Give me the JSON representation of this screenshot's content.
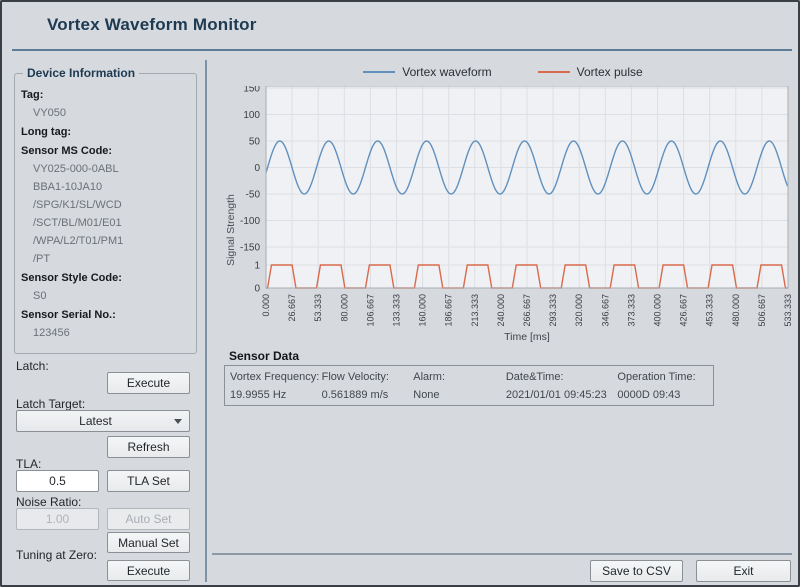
{
  "window": {
    "title": "Vortex Waveform Monitor"
  },
  "device_info": {
    "title": "Device Information",
    "fields": [
      {
        "label": "Tag:",
        "values": [
          "VY050"
        ]
      },
      {
        "label": "Long tag:",
        "values": []
      },
      {
        "label": "Sensor MS Code:",
        "values": [
          "VY025-000-0ABL",
          "BBA1-10JA10",
          "/SPG/K1/SL/WCD",
          "/SCT/BL/M01/E01",
          "/WPA/L2/T01/PM1",
          "/PT"
        ]
      },
      {
        "label": "Sensor Style Code:",
        "values": [
          "S0"
        ]
      },
      {
        "label": "Sensor Serial No.:",
        "values": [
          "123456"
        ]
      }
    ]
  },
  "controls": {
    "latch_label": "Latch:",
    "latch_execute": "Execute",
    "latch_target_label": "Latch Target:",
    "latch_target_value": "Latest",
    "refresh": "Refresh",
    "tla_label": "TLA:",
    "tla_value": "0.5",
    "tla_set": "TLA Set",
    "noise_ratio_label": "Noise Ratio:",
    "noise_ratio_value": "1.00",
    "auto_set": "Auto Set",
    "manual_set": "Manual Set",
    "tuning_label": "Tuning at Zero:",
    "tuning_execute": "Execute"
  },
  "chart_data": {
    "type": "line",
    "xlabel": "Time [ms]",
    "ylabel": "Signal Strength",
    "x_range": [
      0,
      533.333
    ],
    "x_ticks": [
      "0.000",
      "26.667",
      "53.333",
      "80.000",
      "106.667",
      "133.333",
      "160.000",
      "186.667",
      "213.333",
      "240.000",
      "266.667",
      "293.333",
      "320.000",
      "346.667",
      "373.333",
      "400.000",
      "426.667",
      "453.333",
      "480.000",
      "506.667",
      "533.333"
    ],
    "waveform_axis": {
      "ticks": [
        150,
        100,
        50,
        0,
        -50,
        -100,
        -150
      ],
      "range": [
        -150,
        150
      ]
    },
    "pulse_axis": {
      "ticks": [
        1,
        0
      ],
      "range": [
        0,
        1
      ]
    },
    "grid": true,
    "legend_position": "top",
    "series": [
      {
        "name": "Vortex waveform",
        "kind": "sine",
        "color": "#6090bd",
        "amplitude": 50,
        "frequency_hz": 19.9955,
        "phase_rad": -0.2
      },
      {
        "name": "Vortex pulse",
        "kind": "pulse",
        "color": "#d96a4c",
        "high": 1,
        "low": 0,
        "frequency_hz": 19.9955,
        "onset_ms": 1.6,
        "rise_ms": 4,
        "duty": 0.5
      }
    ],
    "colors": {
      "plot_bg": "#f0f1f4",
      "grid": "#dcdfe4",
      "plot_border": "#a9aeb4",
      "tick_text": "#3c4146"
    }
  },
  "sensor_data": {
    "title": "Sensor Data",
    "columns": [
      {
        "label": "Vortex Frequency:",
        "value": "19.9955 Hz"
      },
      {
        "label": "Flow Velocity:",
        "value": "0.561889 m/s"
      },
      {
        "label": "Alarm:",
        "value": "None"
      },
      {
        "label": "Date&Time:",
        "value": "2021/01/01 09:45:23"
      },
      {
        "label": "Operation Time:",
        "value": "0000D 09:43"
      }
    ]
  },
  "footer": {
    "save_csv": "Save to CSV",
    "exit": "Exit"
  }
}
